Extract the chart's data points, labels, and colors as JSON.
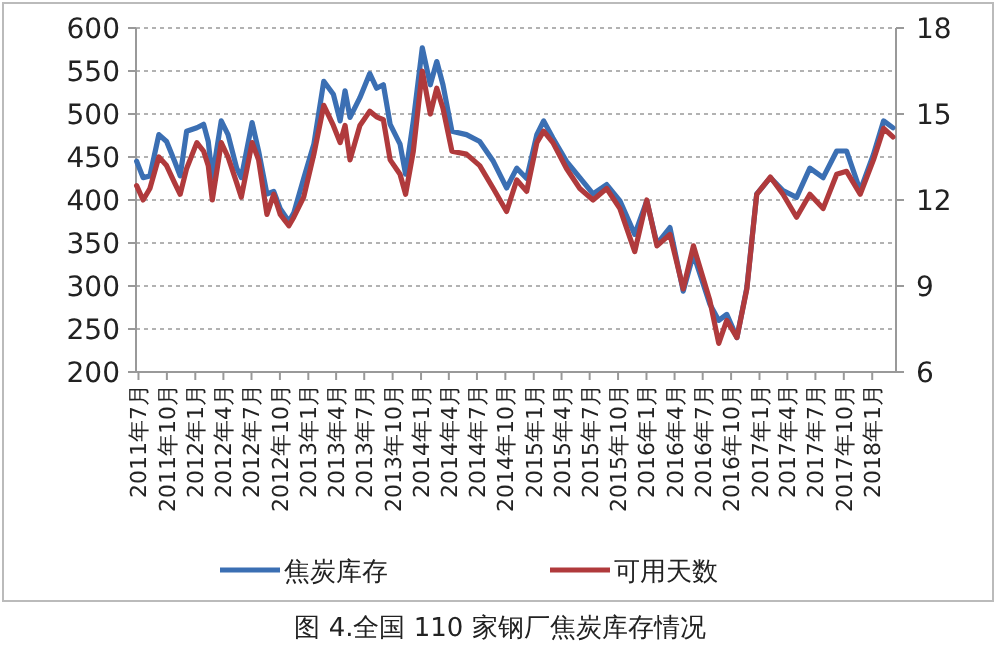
{
  "chart_data": {
    "type": "line",
    "title": "图 4.全国 110 家钢厂焦炭库存情况",
    "x": [
      "2011-06-25",
      "2011-07-16",
      "2011-08-07",
      "2011-09-05",
      "2011-09-30",
      "2011-10-26",
      "2011-11-13",
      "2011-12-04",
      "2012-01-06",
      "2012-01-28",
      "2012-02-12",
      "2012-02-25",
      "2012-03-25",
      "2012-04-16",
      "2012-05-14",
      "2012-05-29",
      "2012-07-03",
      "2012-07-24",
      "2012-08-20",
      "2012-09-11",
      "2012-10-02",
      "2012-10-30",
      "2012-11-15",
      "2012-12-17",
      "2013-01-19",
      "2013-02-20",
      "2013-03-23",
      "2013-04-14",
      "2013-04-30",
      "2013-05-16",
      "2013-06-17",
      "2013-07-19",
      "2013-08-10",
      "2013-09-01",
      "2013-09-23",
      "2013-10-25",
      "2013-11-12",
      "2013-12-07",
      "2014-01-05",
      "2014-01-31",
      "2014-02-21",
      "2014-03-13",
      "2014-04-11",
      "2014-05-28",
      "2014-07-10",
      "2014-08-23",
      "2014-10-05",
      "2014-11-07",
      "2014-12-09",
      "2015-01-11",
      "2015-02-02",
      "2015-03-04",
      "2015-04-17",
      "2015-05-30",
      "2015-07-12",
      "2015-08-25",
      "2015-10-07",
      "2015-11-24",
      "2016-01-02",
      "2016-02-04",
      "2016-03-17",
      "2016-04-29",
      "2016-06-01",
      "2016-07-24",
      "2016-08-22",
      "2016-09-17",
      "2016-10-20",
      "2016-11-21",
      "2016-12-23",
      "2017-02-05",
      "2017-03-18",
      "2017-05-01",
      "2017-06-13",
      "2017-07-26",
      "2017-09-08",
      "2017-10-10",
      "2017-11-23",
      "2018-01-05",
      "2018-02-07",
      "2018-03-09"
    ],
    "series": [
      {
        "name": "焦炭库存",
        "color": "#3b6fb3",
        "values": [
          445,
          426,
          428,
          476,
          468,
          445,
          428,
          480,
          484,
          488,
          468,
          426,
          492,
          476,
          437,
          426,
          490,
          457,
          407,
          410,
          390,
          375,
          385,
          425,
          465,
          538,
          523,
          492,
          527,
          496,
          519,
          547,
          530,
          534,
          488,
          465,
          430,
          492,
          577,
          534,
          561,
          534,
          480,
          476,
          468,
          445,
          414,
          437,
          425,
          476,
          492,
          472,
          445,
          426,
          407,
          418,
          399,
          360,
          399,
          349,
          368,
          294,
          337,
          279,
          260,
          267,
          240,
          298,
          407,
          426,
          411,
          403,
          437,
          426,
          457,
          457,
          411,
          453,
          492,
          484
        ]
      },
      {
        "name": "可用天数",
        "color": "#b03a3c",
        "axis": "y2",
        "values": [
          12.5,
          12.0,
          12.4,
          13.5,
          13.2,
          12.6,
          12.2,
          13.1,
          14.0,
          13.7,
          13.2,
          12.0,
          14.0,
          13.5,
          12.6,
          12.1,
          14.0,
          13.4,
          11.5,
          12.2,
          11.5,
          11.1,
          11.4,
          12.1,
          13.6,
          15.3,
          14.6,
          14.0,
          14.6,
          13.4,
          14.6,
          15.1,
          14.9,
          14.8,
          13.4,
          12.9,
          12.2,
          13.7,
          16.5,
          15.0,
          15.9,
          15.2,
          13.7,
          13.6,
          13.2,
          12.4,
          11.6,
          12.7,
          12.3,
          14.0,
          14.4,
          14.0,
          13.1,
          12.4,
          12.0,
          12.4,
          11.7,
          10.2,
          12.0,
          10.4,
          10.8,
          8.9,
          10.4,
          8.5,
          7.0,
          7.8,
          7.2,
          8.9,
          12.2,
          12.8,
          12.2,
          11.4,
          12.2,
          11.7,
          12.9,
          13.0,
          12.2,
          13.4,
          14.5,
          14.2
        ]
      }
    ],
    "xlim": [
      "2011-06-23",
      "2018-03-19"
    ],
    "xticks": [
      {
        "value": "2011-07",
        "label": "2011年7月"
      },
      {
        "value": "2011-10",
        "label": "2011年10月"
      },
      {
        "value": "2012-01",
        "label": "2012年1月"
      },
      {
        "value": "2012-04",
        "label": "2012年4月"
      },
      {
        "value": "2012-07",
        "label": "2012年7月"
      },
      {
        "value": "2012-10",
        "label": "2012年10月"
      },
      {
        "value": "2013-01",
        "label": "2013年1月"
      },
      {
        "value": "2013-04",
        "label": "2013年4月"
      },
      {
        "value": "2013-07",
        "label": "2013年7月"
      },
      {
        "value": "2013-10",
        "label": "2013年10月"
      },
      {
        "value": "2014-01",
        "label": "2014年1月"
      },
      {
        "value": "2014-04",
        "label": "2014年4月"
      },
      {
        "value": "2014-07",
        "label": "2014年7月"
      },
      {
        "value": "2014-10",
        "label": "2014年10月"
      },
      {
        "value": "2015-01",
        "label": "2015年1月"
      },
      {
        "value": "2015-04",
        "label": "2015年4月"
      },
      {
        "value": "2015-07",
        "label": "2015年7月"
      },
      {
        "value": "2015-10",
        "label": "2015年10月"
      },
      {
        "value": "2016-01",
        "label": "2016年1月"
      },
      {
        "value": "2016-04",
        "label": "2016年4月"
      },
      {
        "value": "2016-07",
        "label": "2016年7月"
      },
      {
        "value": "2016-10",
        "label": "2016年10月"
      },
      {
        "value": "2017-01",
        "label": "2017年1月"
      },
      {
        "value": "2017-04",
        "label": "2017年4月"
      },
      {
        "value": "2017-07",
        "label": "2017年7月"
      },
      {
        "value": "2017-10",
        "label": "2017年10月"
      },
      {
        "value": "2018-01",
        "label": "2018年1月"
      }
    ],
    "ylim": [
      200,
      600
    ],
    "yticks": [
      200,
      250,
      300,
      350,
      400,
      450,
      500,
      550,
      600
    ],
    "y2lim": [
      6,
      18
    ],
    "y2ticks": [
      6,
      9,
      12,
      15,
      18
    ],
    "grid": "y",
    "legend": "bottom",
    "marker": "none",
    "line_style": "solid"
  }
}
